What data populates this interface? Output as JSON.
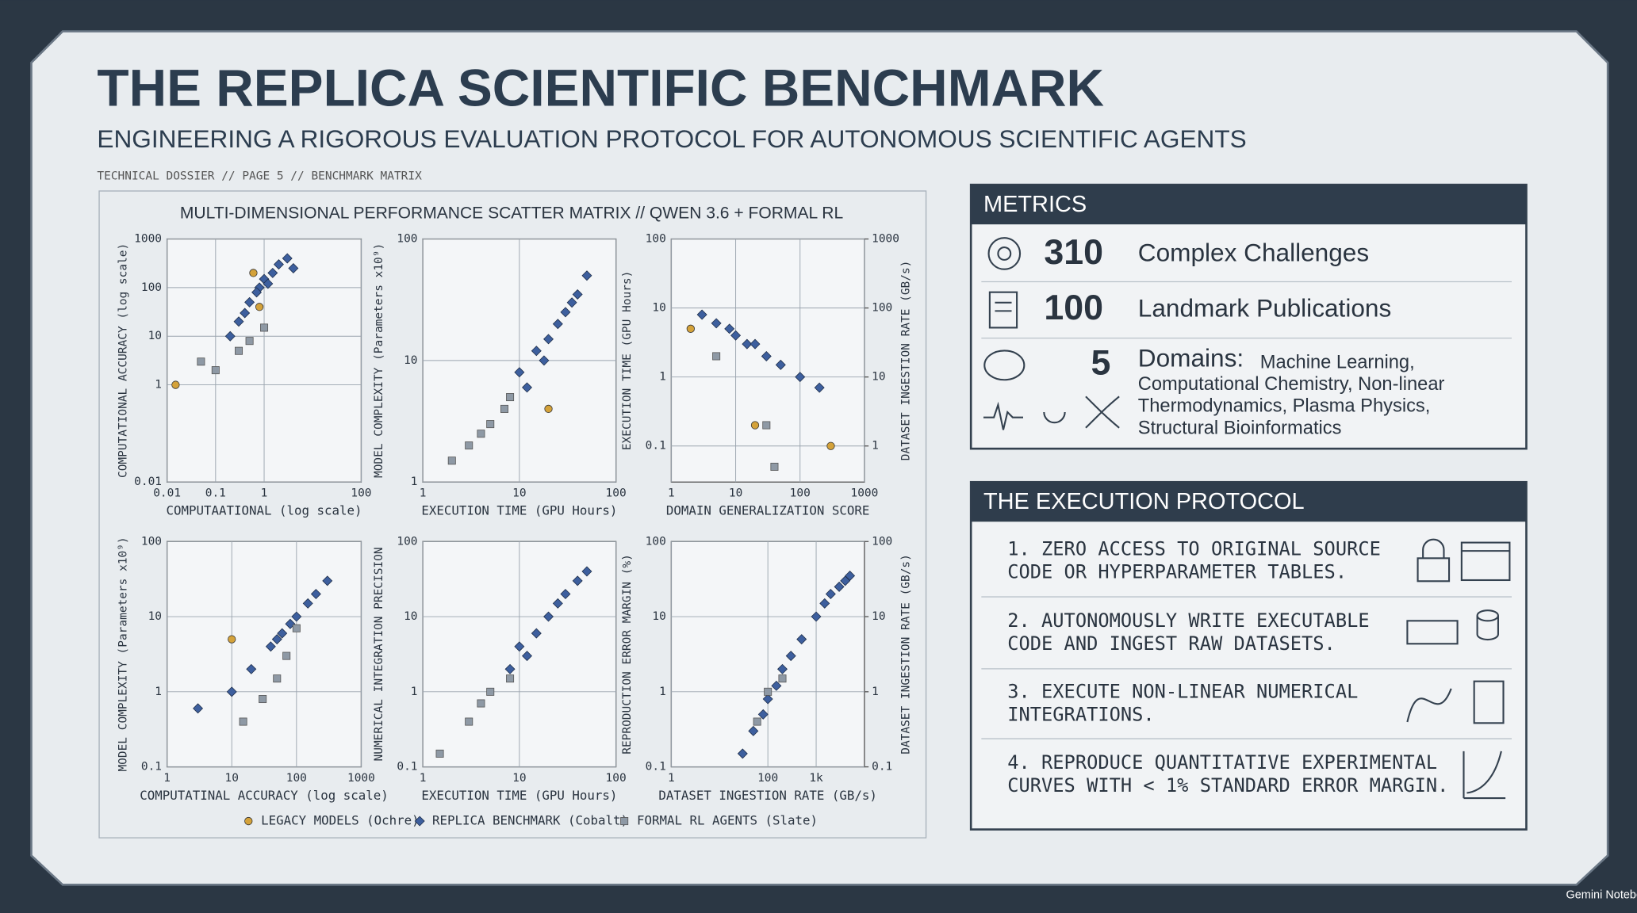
{
  "header": {
    "title": "THE REPLICA SCIENTIFIC BENCHMARK",
    "subtitle": "ENGINEERING A RIGOROUS EVALUATION PROTOCOL FOR AUTONOMOUS SCIENTIFIC AGENTS",
    "dossier": "TECHNICAL DOSSIER // PAGE 5 // BENCHMARK MATRIX"
  },
  "matrix_title": "MULTI-DIMENSIONAL PERFORMANCE SCATTER MATRIX // QWEN 3.6 + FORMAL RL",
  "legend": [
    {
      "name": "LEGACY MODELS (Ochre)",
      "color": "#d4a23a"
    },
    {
      "name": "REPLICA BENCHMARK (Cobalt)",
      "color": "#3d5f9e"
    },
    {
      "name": "FORMAL RL AGENTS (Slate)",
      "color": "#8e99a5"
    }
  ],
  "chart_data": [
    {
      "type": "scatter",
      "x_label": "COMPUTAATIONAL (log scale)",
      "y_label": "COMPUTATIONAL ACCURACY (log scale)",
      "xscale": "log",
      "yscale": "log",
      "grid": true,
      "xlim": [
        0.01,
        100
      ],
      "xticks": [
        0.01,
        0.1,
        1,
        100
      ],
      "ylim": [
        0.01,
        1000
      ],
      "yticks": [
        0.01,
        1,
        10,
        100,
        1000
      ],
      "series": [
        {
          "x": [
            0.015,
            0.6,
            0.8
          ],
          "values": [
            1,
            200,
            40
          ]
        },
        {
          "x": [
            0.3,
            0.5,
            0.8,
            1,
            1.5,
            2,
            3,
            0.2,
            0.7,
            1.2,
            4,
            0.4
          ],
          "values": [
            20,
            50,
            100,
            150,
            200,
            300,
            400,
            10,
            80,
            120,
            250,
            30
          ]
        },
        {
          "x": [
            0.05,
            0.1,
            0.3,
            0.5,
            1
          ],
          "values": [
            3,
            2,
            5,
            8,
            15
          ]
        }
      ]
    },
    {
      "type": "scatter",
      "x_label": "EXECUTION TIME (GPU Hours)",
      "y_label": "MODEL COMPLEXITY (Parameters x10⁹)",
      "xscale": "log",
      "yscale": "log",
      "grid": true,
      "xlim": [
        1,
        100
      ],
      "xticks": [
        1,
        10,
        100
      ],
      "ylim": [
        1,
        100
      ],
      "yticks": [
        1,
        10,
        100
      ],
      "series": [
        {
          "x": [
            20
          ],
          "values": [
            4
          ]
        },
        {
          "x": [
            10,
            15,
            20,
            25,
            30,
            40,
            50,
            12,
            18,
            35
          ],
          "values": [
            8,
            12,
            15,
            20,
            25,
            35,
            50,
            6,
            10,
            30
          ]
        },
        {
          "x": [
            2,
            3,
            5,
            7,
            8,
            4
          ],
          "values": [
            1.5,
            2,
            3,
            4,
            5,
            2.5
          ]
        }
      ]
    },
    {
      "type": "scatter",
      "x_label": "DOMAIN GENERALIZATION SCORE",
      "y_label": "EXECUTION TIME (GPU Hours)",
      "y2_label": "DATASET INGESTION RATE (GB/s)",
      "xscale": "log",
      "yscale": "log",
      "grid": true,
      "xlim": [
        1,
        1000
      ],
      "xticks": [
        1,
        10,
        100,
        1000
      ],
      "ylim": [
        0.03,
        100
      ],
      "yticks": [
        0.1,
        1,
        10,
        100
      ],
      "y2lim": [
        0.3,
        1000
      ],
      "y2ticks": [
        1,
        10,
        100,
        1000
      ],
      "series": [
        {
          "x": [
            2,
            20,
            300
          ],
          "values": [
            5,
            0.2,
            0.1
          ]
        },
        {
          "x": [
            3,
            5,
            8,
            10,
            15,
            20,
            30,
            50,
            100,
            200
          ],
          "values": [
            8,
            6,
            5,
            4,
            3,
            3,
            2,
            1.5,
            1,
            0.7
          ]
        },
        {
          "x": [
            5,
            30,
            40
          ],
          "values": [
            2,
            0.2,
            0.05
          ]
        }
      ]
    },
    {
      "type": "scatter",
      "x_label": "COMPUTATINAL ACCURACY (log scale)",
      "y_label": "MODEL COMPLEXITY (Parameters x10⁹)",
      "xscale": "log",
      "yscale": "log",
      "grid": true,
      "xlim": [
        1,
        1000
      ],
      "xticks": [
        1,
        10,
        100,
        1000
      ],
      "ylim": [
        0.1,
        100
      ],
      "yticks": [
        0.1,
        1,
        10,
        100
      ],
      "series": [
        {
          "x": [
            10
          ],
          "values": [
            5
          ]
        },
        {
          "x": [
            3,
            10,
            20,
            40,
            60,
            80,
            100,
            150,
            200,
            300,
            50
          ],
          "values": [
            0.6,
            1,
            2,
            4,
            6,
            8,
            10,
            15,
            20,
            30,
            5
          ]
        },
        {
          "x": [
            15,
            30,
            50,
            70,
            100
          ],
          "values": [
            0.4,
            0.8,
            1.5,
            3,
            7
          ]
        }
      ]
    },
    {
      "type": "scatter",
      "x_label": "EXECUTION TIME (GPU Hours)",
      "y_label": "NUMERICAL INTEGRATION PRECISION",
      "xscale": "log",
      "yscale": "log",
      "grid": true,
      "xlim": [
        1,
        100
      ],
      "xticks": [
        1,
        10,
        100
      ],
      "ylim": [
        0.1,
        100
      ],
      "yticks": [
        0.1,
        1,
        10,
        100
      ],
      "series": [
        {
          "x": [],
          "values": []
        },
        {
          "x": [
            8,
            10,
            15,
            20,
            25,
            30,
            40,
            50,
            12
          ],
          "values": [
            2,
            4,
            6,
            10,
            15,
            20,
            30,
            40,
            3
          ]
        },
        {
          "x": [
            1.5,
            3,
            5,
            8,
            4
          ],
          "values": [
            0.15,
            0.4,
            1,
            1.5,
            0.7
          ]
        }
      ]
    },
    {
      "type": "scatter",
      "x_label": "DATASET INGESTION RATE (GB/s)",
      "y_label": "REPRODUCTION ERROR MARGIN (%)",
      "y2_label": "DATASET INGESTION RATE (GB/s)",
      "xscale": "log",
      "yscale": "log",
      "grid": true,
      "xlim": [
        1,
        10000
      ],
      "xticks": [
        1,
        100,
        {
          "value": 1000,
          "label": "1k"
        }
      ],
      "ylim": [
        0.1,
        100
      ],
      "yticks": [
        0.1,
        1,
        10,
        100
      ],
      "y2lim": [
        0.1,
        100
      ],
      "y2ticks": [
        0.1,
        1,
        10,
        100
      ],
      "series": [
        {
          "x": [],
          "values": []
        },
        {
          "x": [
            30,
            50,
            80,
            100,
            150,
            200,
            300,
            500,
            1000,
            1500,
            2000,
            3000,
            4000,
            5000
          ],
          "values": [
            0.15,
            0.3,
            0.5,
            0.8,
            1.2,
            2,
            3,
            5,
            10,
            15,
            20,
            25,
            30,
            35
          ]
        },
        {
          "x": [
            60,
            100,
            200
          ],
          "values": [
            0.4,
            1,
            1.5
          ]
        }
      ]
    }
  ],
  "metrics": {
    "title": "METRICS",
    "items": [
      {
        "value": "310",
        "label": "Complex Challenges"
      },
      {
        "value": "100",
        "label": "Landmark Publications"
      },
      {
        "value": "5",
        "label": "Domains:",
        "detail": [
          "Machine Learning,",
          "Computational Chemistry, Non-linear",
          "Thermodynamics, Plasma Physics,",
          "Structural Bioinformatics"
        ]
      }
    ]
  },
  "protocol": {
    "title": "THE EXECUTION PROTOCOL",
    "steps": [
      [
        "1. ZERO ACCESS TO ORIGINAL SOURCE",
        "CODE OR HYPERPARAMETER TABLES."
      ],
      [
        "2. AUTONOMOUSLY WRITE EXECUTABLE",
        "CODE AND INGEST RAW DATASETS."
      ],
      [
        "3. EXECUTE NON-LINEAR NUMERICAL",
        "INTEGRATIONS."
      ],
      [
        "4. REPRODUCE QUANTITATIVE EXPERIMENTAL",
        "CURVES WITH < 1% STANDARD ERROR MARGIN."
      ]
    ]
  },
  "footer": "Gemini Notebook"
}
